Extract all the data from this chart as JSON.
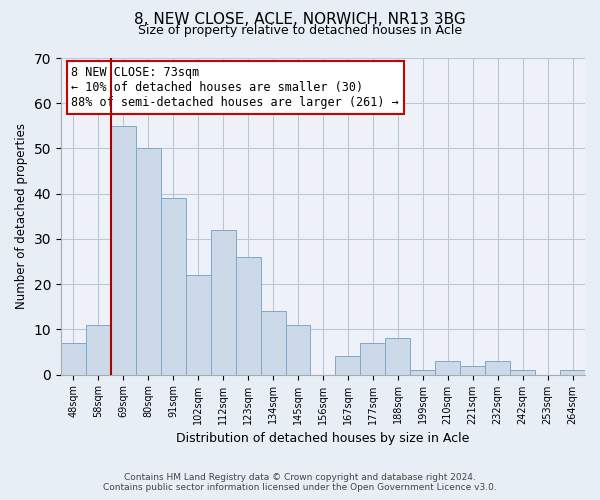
{
  "title": "8, NEW CLOSE, ACLE, NORWICH, NR13 3BG",
  "subtitle": "Size of property relative to detached houses in Acle",
  "xlabel": "Distribution of detached houses by size in Acle",
  "ylabel": "Number of detached properties",
  "bar_labels": [
    "48sqm",
    "58sqm",
    "69sqm",
    "80sqm",
    "91sqm",
    "102sqm",
    "112sqm",
    "123sqm",
    "134sqm",
    "145sqm",
    "156sqm",
    "167sqm",
    "177sqm",
    "188sqm",
    "199sqm",
    "210sqm",
    "221sqm",
    "232sqm",
    "242sqm",
    "253sqm",
    "264sqm"
  ],
  "bar_values": [
    7,
    11,
    55,
    50,
    39,
    22,
    32,
    26,
    14,
    11,
    0,
    4,
    7,
    8,
    1,
    3,
    2,
    3,
    1,
    0,
    1
  ],
  "bar_color": "#ccd9e8",
  "bar_edge_color": "#7fa8c8",
  "ylim": [
    0,
    70
  ],
  "yticks": [
    0,
    10,
    20,
    30,
    40,
    50,
    60,
    70
  ],
  "vline_x_index": 2,
  "vline_color": "#aa0000",
  "annotation_title": "8 NEW CLOSE: 73sqm",
  "annotation_line1": "← 10% of detached houses are smaller (30)",
  "annotation_line2": "88% of semi-detached houses are larger (261) →",
  "annotation_box_color": "#ffffff",
  "annotation_box_edge": "#cc0000",
  "footer_line1": "Contains HM Land Registry data © Crown copyright and database right 2024.",
  "footer_line2": "Contains public sector information licensed under the Open Government Licence v3.0.",
  "background_color": "#e8eef5",
  "plot_background": "#eef2f8",
  "grid_color": "#b8c8d8"
}
